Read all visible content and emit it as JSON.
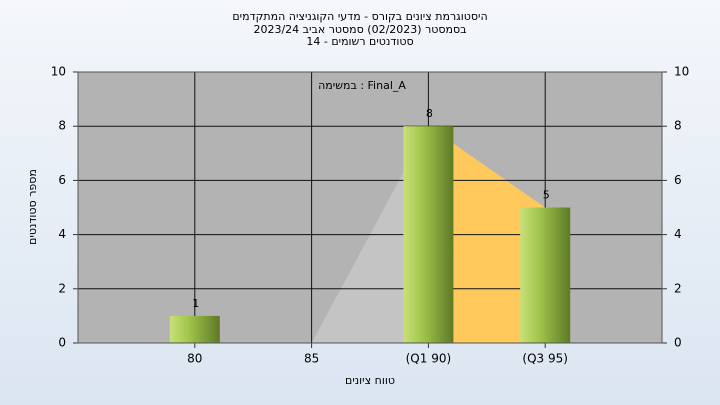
{
  "chart_data": {
    "type": "bar",
    "title": "היסטוגרמת ציונים בקורס - מדעי הקוגניציה המתקדמים",
    "subtitle": "בסמסטר (02/2023) סמסטר אביב 2023/24",
    "subtitle2": "סטודנטים רשומים - 14",
    "annotation": "במשימה : Final_A",
    "x_label": "טווח ציונים",
    "y_label": "מספר סטודנטים",
    "categories": [
      "80",
      "85",
      "(Q1 90)",
      "(Q3 95)"
    ],
    "values": [
      1,
      0,
      8,
      5
    ],
    "value_labels": [
      "1",
      null,
      "8",
      "5"
    ],
    "color": "#9cc24a",
    "ylim": [
      0,
      10
    ],
    "yticks": [
      0,
      2,
      4,
      6,
      8,
      10
    ],
    "y2lim": [
      0,
      10
    ],
    "y2ticks": [
      0,
      2,
      4,
      6,
      8,
      10
    ],
    "grid": true
  }
}
